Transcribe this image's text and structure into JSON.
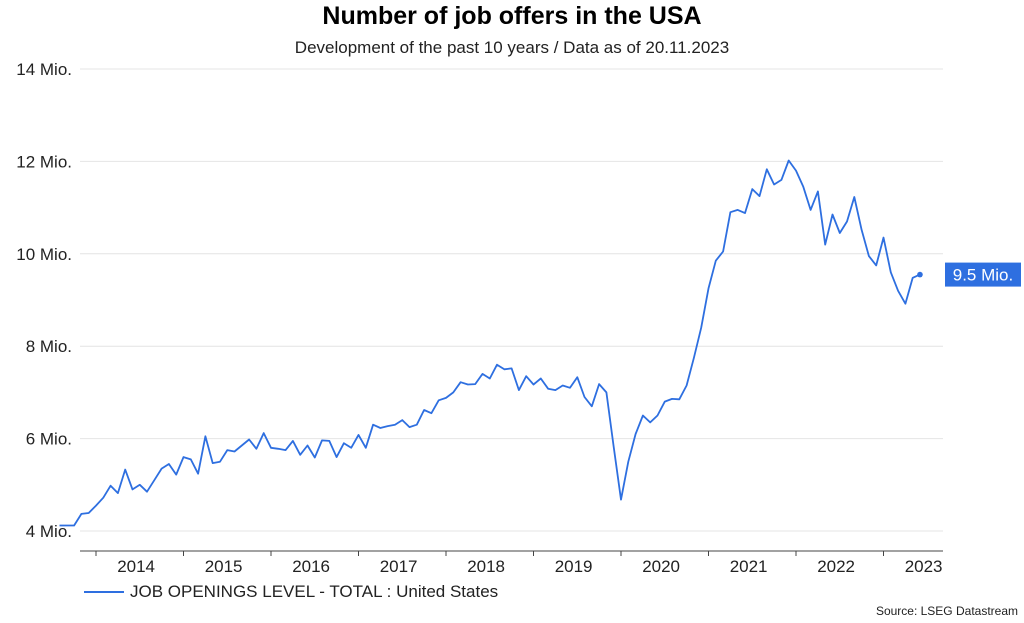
{
  "header": {
    "title": "Number of job offers in the USA",
    "subtitle": "Development of the past 10 years / Data as of 20.11.2023"
  },
  "footer": {
    "source": "Source: LSEG Datastream"
  },
  "colors": {
    "line": "#2e6fe0",
    "label_bg": "#2e6fe0",
    "grid": "#e4e4e4",
    "axis": "#444444"
  },
  "chart_data": {
    "type": "line",
    "title": "Number of job offers in the USA",
    "subtitle": "Development of the past 10 years / Data as of 20.11.2023",
    "ylim": [
      4,
      14
    ],
    "yticks": [
      4,
      6,
      8,
      10,
      12,
      14
    ],
    "ytick_labels": [
      "4 Mio.",
      "6 Mio.",
      "8 Mio.",
      "10 Mio.",
      "12 Mio.",
      "14 Mio."
    ],
    "xticks": [
      "2014",
      "2015",
      "2016",
      "2017",
      "2018",
      "2019",
      "2020",
      "2021",
      "2022",
      "2023"
    ],
    "grid": true,
    "legend_position": "bottom-left",
    "last_value_label": "9.5 Mio.",
    "series": [
      {
        "name": "JOB OPENINGS LEVEL - TOTAL : United States",
        "start": "2013-08",
        "frequency": "monthly",
        "values": [
          4.12,
          4.12,
          4.12,
          4.37,
          4.39,
          4.55,
          4.72,
          4.98,
          4.82,
          5.33,
          4.9,
          5.0,
          4.85,
          5.1,
          5.35,
          5.45,
          5.22,
          5.6,
          5.55,
          5.24,
          6.05,
          5.47,
          5.5,
          5.75,
          5.72,
          5.85,
          5.98,
          5.78,
          6.12,
          5.8,
          5.78,
          5.75,
          5.95,
          5.65,
          5.85,
          5.59,
          5.96,
          5.95,
          5.6,
          5.9,
          5.8,
          6.08,
          5.8,
          6.3,
          6.23,
          6.27,
          6.3,
          6.4,
          6.25,
          6.3,
          6.62,
          6.55,
          6.83,
          6.88,
          7.0,
          7.22,
          7.17,
          7.18,
          7.4,
          7.3,
          7.6,
          7.5,
          7.52,
          7.05,
          7.35,
          7.17,
          7.3,
          7.08,
          7.05,
          7.15,
          7.1,
          7.33,
          6.9,
          6.7,
          7.18,
          7.0,
          5.82,
          4.68,
          5.5,
          6.1,
          6.5,
          6.35,
          6.5,
          6.8,
          6.86,
          6.85,
          7.15,
          7.75,
          8.4,
          9.25,
          9.85,
          10.05,
          10.9,
          10.95,
          10.88,
          11.4,
          11.25,
          11.83,
          11.5,
          11.6,
          12.02,
          11.8,
          11.45,
          10.95,
          11.35,
          10.2,
          10.85,
          10.45,
          10.7,
          11.23,
          10.52,
          9.95,
          9.75,
          10.35,
          9.6,
          9.2,
          8.92,
          9.48,
          9.55
        ]
      }
    ]
  }
}
